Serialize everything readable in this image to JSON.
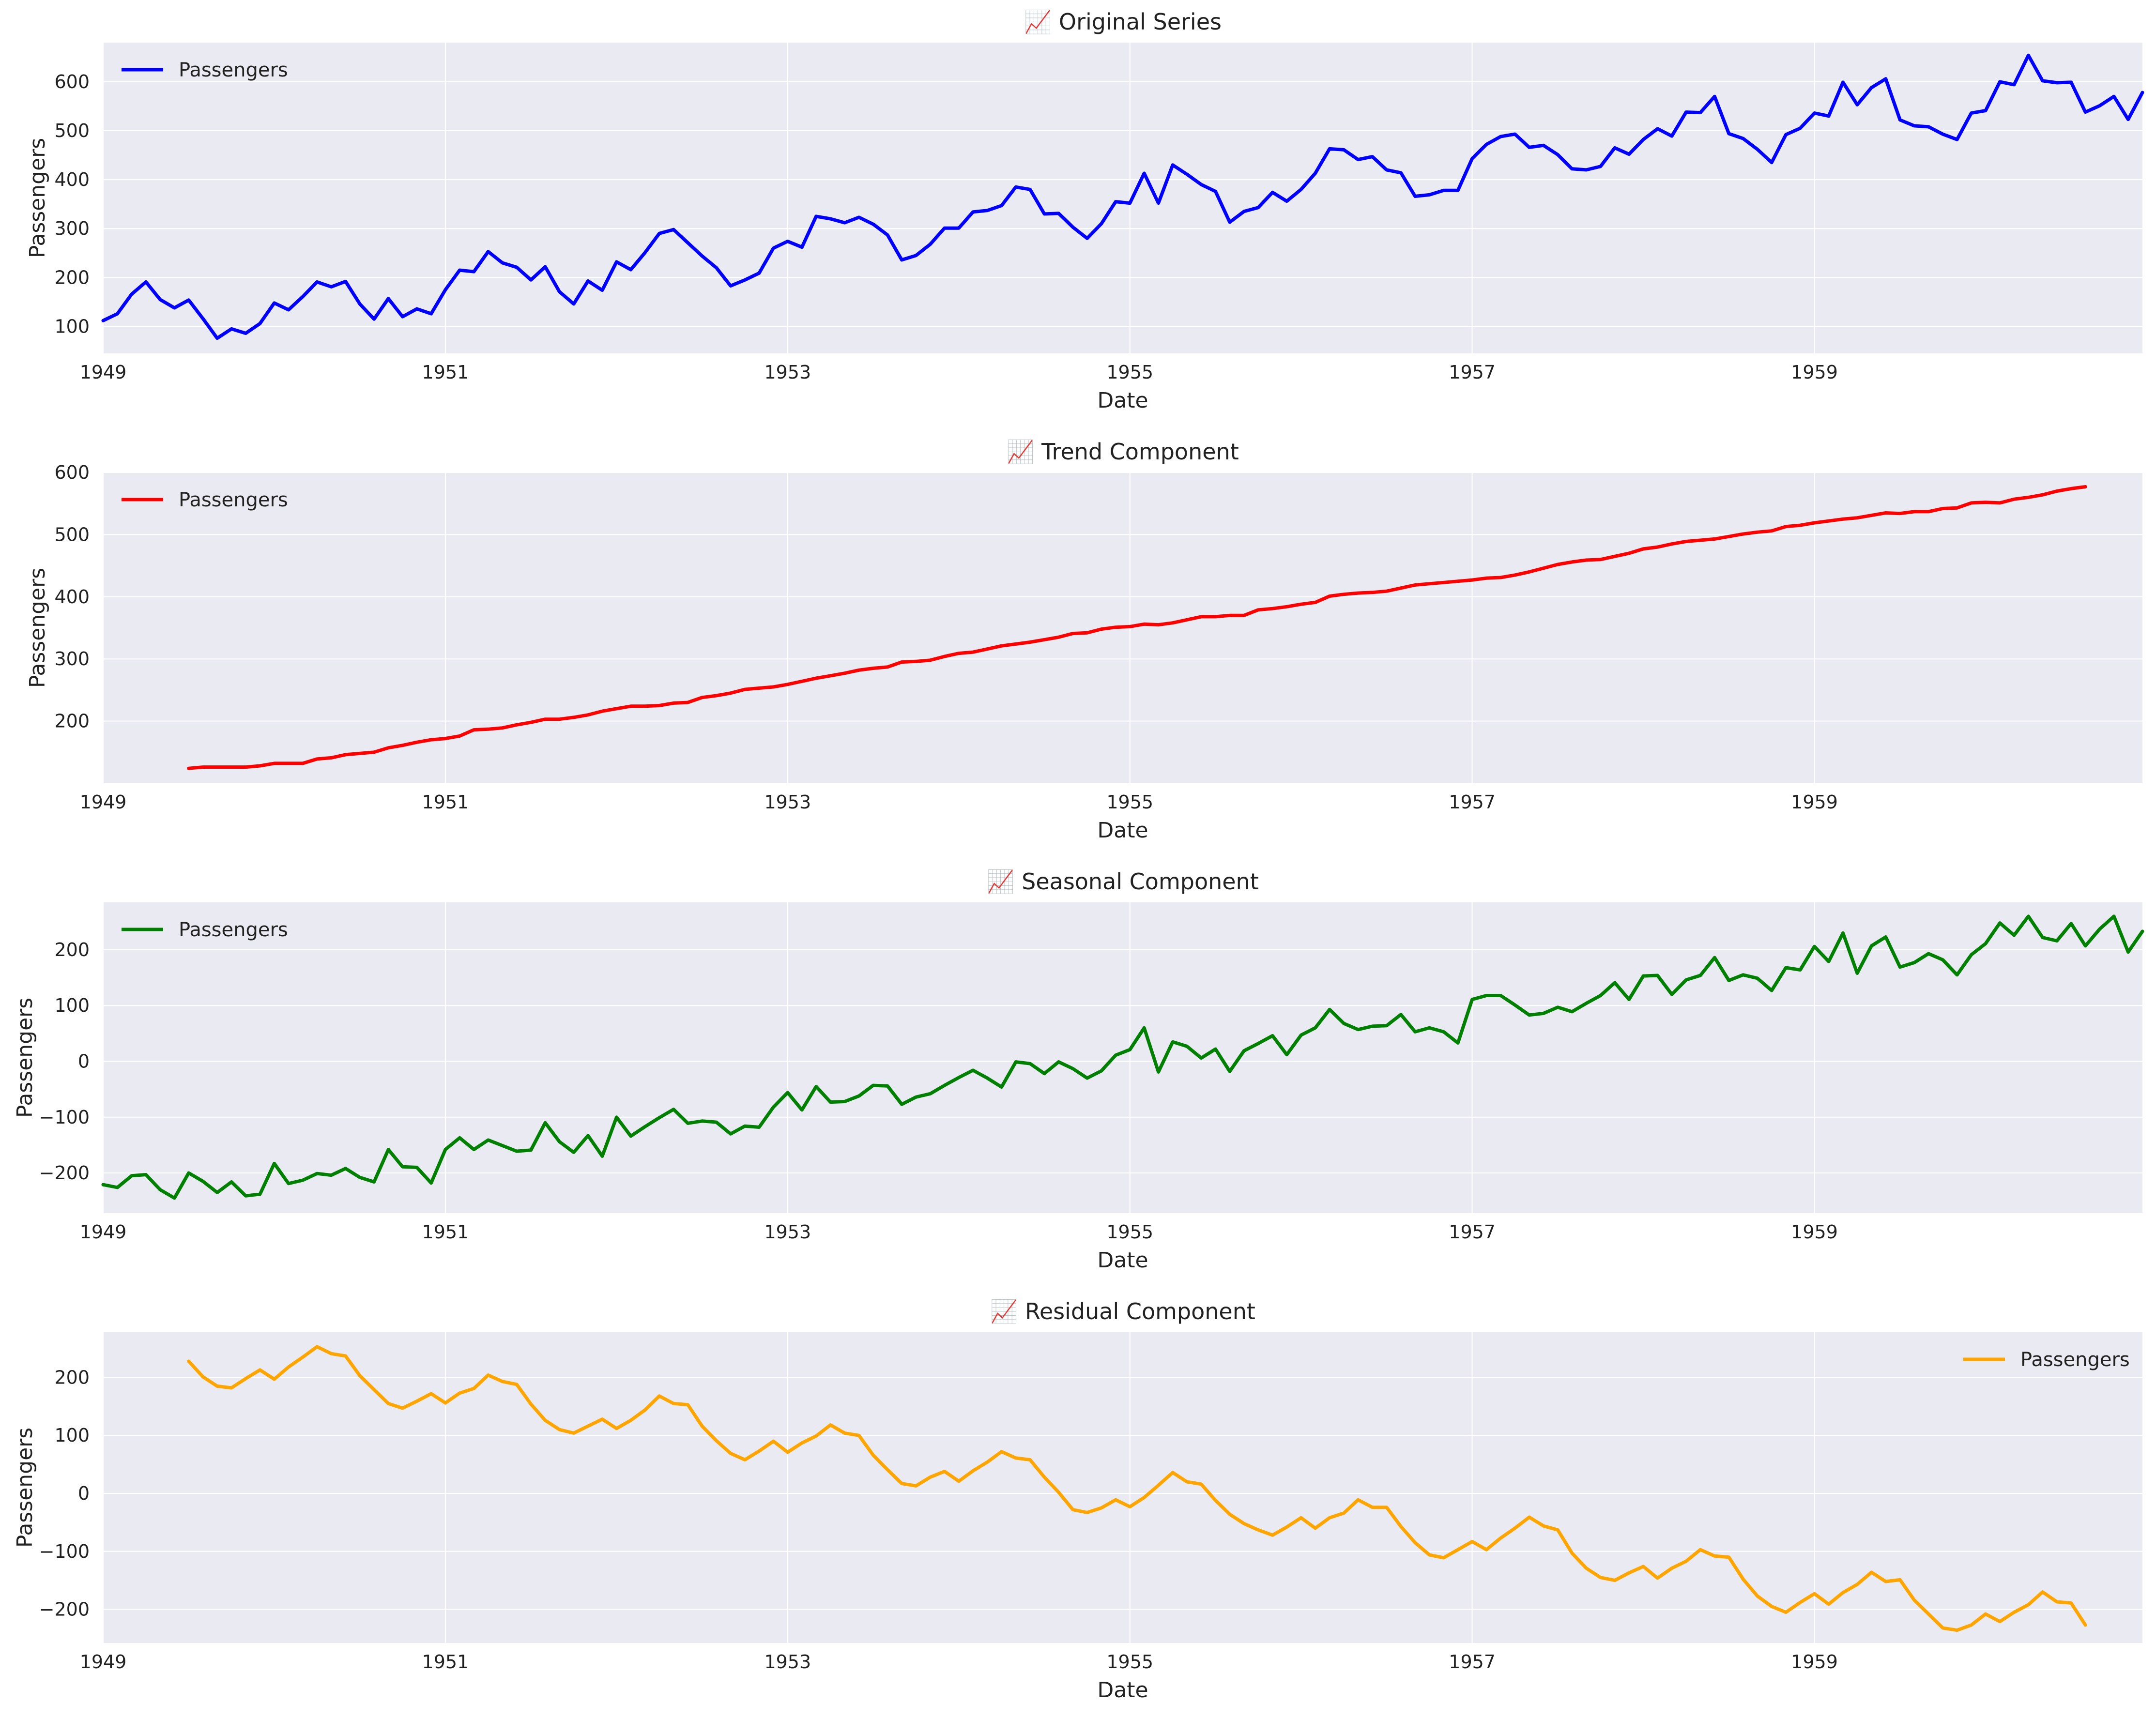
{
  "chart_data": [
    {
      "type": "line",
      "title": "📈 Original Series",
      "xlabel": "Date",
      "ylabel": "Passengers",
      "x_start": "1949-01",
      "x_end": "1960-12",
      "xlim": [
        "1949-01",
        "1960-12"
      ],
      "ylim": [
        45,
        680
      ],
      "yticks": [
        100,
        200,
        300,
        400,
        500,
        600
      ],
      "xticks": [
        "1949",
        "1951",
        "1953",
        "1955",
        "1957",
        "1959"
      ],
      "legend": "top-left",
      "grid": true,
      "series": [
        {
          "name": "Passengers",
          "color": "#0000ff",
          "values": [
            112,
            126,
            166,
            191,
            155,
            138,
            154,
            116,
            76,
            95,
            86,
            106,
            148,
            134,
            161,
            191,
            181,
            192,
            146,
            115,
            157,
            120,
            136,
            126,
            175,
            215,
            212,
            253,
            230,
            221,
            195,
            222,
            171,
            146,
            193,
            174,
            232,
            216,
            251,
            290,
            298,
            271,
            244,
            220,
            183,
            195,
            209,
            260,
            274,
            262,
            325,
            320,
            312,
            323,
            309,
            287,
            236,
            245,
            268,
            301,
            301,
            334,
            337,
            347,
            385,
            380,
            330,
            331,
            303,
            280,
            310,
            355,
            352,
            413,
            352,
            430,
            411,
            390,
            376,
            313,
            335,
            343,
            374,
            356,
            380,
            413,
            463,
            461,
            441,
            447,
            420,
            414,
            366,
            369,
            378,
            378,
            443,
            472,
            488,
            493,
            466,
            470,
            451,
            422,
            420,
            427,
            465,
            452,
            482,
            504,
            489,
            538,
            537,
            570,
            494,
            484,
            462,
            435,
            492,
            505,
            536,
            530,
            599,
            553,
            588,
            606,
            522,
            510,
            508,
            493,
            482,
            536,
            541,
            600,
            594,
            654,
            602,
            598,
            599,
            538,
            551,
            570,
            523,
            578
          ]
        }
      ]
    },
    {
      "type": "line",
      "title": "📈 Trend Component",
      "xlabel": "Date",
      "ylabel": "Passengers",
      "x_start": "1949-01",
      "x_end": "1960-12",
      "xlim": [
        "1949-01",
        "1960-12"
      ],
      "ylim": [
        100,
        600
      ],
      "yticks": [
        200,
        300,
        400,
        500,
        600
      ],
      "xticks": [
        "1949",
        "1951",
        "1953",
        "1955",
        "1957",
        "1959"
      ],
      "legend": "top-left",
      "grid": true,
      "series": [
        {
          "name": "Passengers",
          "color": "#ff0000",
          "start_index": 6,
          "values": [
            124,
            126,
            126,
            126,
            126,
            128,
            132,
            132,
            132,
            139,
            141,
            146,
            148,
            150,
            157,
            161,
            166,
            170,
            172,
            176,
            186,
            187,
            189,
            194,
            198,
            203,
            203,
            206,
            210,
            216,
            220,
            224,
            224,
            225,
            229,
            230,
            238,
            241,
            245,
            251,
            253,
            255,
            259,
            264,
            269,
            273,
            277,
            282,
            285,
            287,
            295,
            296,
            298,
            304,
            309,
            311,
            316,
            321,
            324,
            327,
            331,
            335,
            341,
            342,
            348,
            351,
            352,
            356,
            355,
            358,
            363,
            368,
            368,
            370,
            370,
            379,
            381,
            384,
            388,
            391,
            401,
            404,
            406,
            407,
            409,
            414,
            419,
            421,
            423,
            425,
            427,
            430,
            431,
            435,
            440,
            446,
            452,
            456,
            459,
            460,
            465,
            470,
            477,
            480,
            485,
            489,
            491,
            493,
            497,
            501,
            504,
            506,
            513,
            515,
            519,
            522,
            525,
            527,
            531,
            535,
            534,
            537,
            537,
            542,
            543,
            551,
            552,
            551,
            557,
            560,
            564,
            570,
            574,
            577
          ]
        }
      ]
    },
    {
      "type": "line",
      "title": "📈 Seasonal Component",
      "xlabel": "Date",
      "ylabel": "Passengers",
      "x_start": "1949-01",
      "x_end": "1960-12",
      "xlim": [
        "1949-01",
        "1960-12"
      ],
      "ylim": [
        -272,
        285
      ],
      "yticks": [
        -200,
        -100,
        0,
        100,
        200
      ],
      "ytick_labels": [
        "−200",
        "−100",
        "0",
        "100",
        "200"
      ],
      "xticks": [
        "1949",
        "1951",
        "1953",
        "1955",
        "1957",
        "1959"
      ],
      "legend": "top-left",
      "grid": true,
      "series": [
        {
          "name": "Passengers",
          "color": "#008000",
          "values": [
            -221,
            -226,
            -205,
            -203,
            -230,
            -245,
            -200,
            -215,
            -235,
            -216,
            -241,
            -238,
            -183,
            -219,
            -213,
            -201,
            -204,
            -192,
            -208,
            -216,
            -158,
            -189,
            -190,
            -218,
            -158,
            -137,
            -158,
            -141,
            -151,
            -161,
            -159,
            -110,
            -144,
            -163,
            -133,
            -170,
            -100,
            -134,
            -117,
            -101,
            -86,
            -111,
            -107,
            -109,
            -130,
            -116,
            -118,
            -82,
            -56,
            -87,
            -45,
            -73,
            -72,
            -62,
            -43,
            -44,
            -77,
            -64,
            -58,
            -43,
            -29,
            -16,
            -30,
            -46,
            -1,
            -4,
            -22,
            -1,
            -13,
            -30,
            -17,
            11,
            21,
            60,
            -19,
            35,
            27,
            6,
            22,
            -18,
            19,
            32,
            46,
            12,
            47,
            60,
            93,
            68,
            57,
            63,
            64,
            84,
            53,
            60,
            53,
            33,
            111,
            118,
            118,
            101,
            83,
            86,
            97,
            89,
            104,
            118,
            141,
            111,
            153,
            154,
            120,
            146,
            154,
            186,
            145,
            155,
            149,
            127,
            168,
            164,
            206,
            179,
            230,
            158,
            207,
            223,
            169,
            177,
            193,
            182,
            155,
            191,
            211,
            248,
            226,
            260,
            222,
            216,
            247,
            207,
            237,
            260,
            196,
            233
          ]
        }
      ]
    },
    {
      "type": "line",
      "title": "📈 Residual Component",
      "xlabel": "Date",
      "ylabel": "Passengers",
      "x_start": "1949-01",
      "x_end": "1960-12",
      "xlim": [
        "1949-01",
        "1960-12"
      ],
      "ylim": [
        -258,
        278
      ],
      "yticks": [
        -200,
        -100,
        0,
        100,
        200
      ],
      "ytick_labels": [
        "−200",
        "−100",
        "0",
        "100",
        "200"
      ],
      "xticks": [
        "1949",
        "1951",
        "1953",
        "1955",
        "1957",
        "1959"
      ],
      "legend": "top-right",
      "grid": true,
      "series": [
        {
          "name": "Passengers",
          "color": "#ffa500",
          "start_index": 6,
          "values": [
            228,
            201,
            185,
            182,
            198,
            213,
            197,
            218,
            235,
            253,
            241,
            237,
            203,
            179,
            155,
            147,
            159,
            172,
            156,
            173,
            181,
            204,
            193,
            188,
            154,
            126,
            110,
            104,
            116,
            128,
            112,
            126,
            144,
            168,
            155,
            153,
            116,
            91,
            69,
            58,
            73,
            90,
            71,
            87,
            99,
            118,
            104,
            100,
            66,
            41,
            17,
            13,
            28,
            38,
            21,
            39,
            54,
            72,
            61,
            58,
            28,
            2,
            -28,
            -33,
            -25,
            -11,
            -23,
            -7,
            14,
            36,
            20,
            16,
            -12,
            -36,
            -52,
            -63,
            -72,
            -58,
            -42,
            -60,
            -42,
            -34,
            -11,
            -24,
            -24,
            -57,
            -85,
            -106,
            -111,
            -97,
            -83,
            -97,
            -77,
            -60,
            -41,
            -56,
            -63,
            -103,
            -129,
            -145,
            -150,
            -137,
            -126,
            -146,
            -129,
            -117,
            -97,
            -108,
            -110,
            -148,
            -177,
            -195,
            -205,
            -188,
            -173,
            -191,
            -171,
            -157,
            -136,
            -152,
            -149,
            -184,
            -208,
            -232,
            -236,
            -227,
            -208,
            -221,
            -205,
            -192,
            -170,
            -187,
            -189,
            -227
          ]
        }
      ]
    }
  ]
}
